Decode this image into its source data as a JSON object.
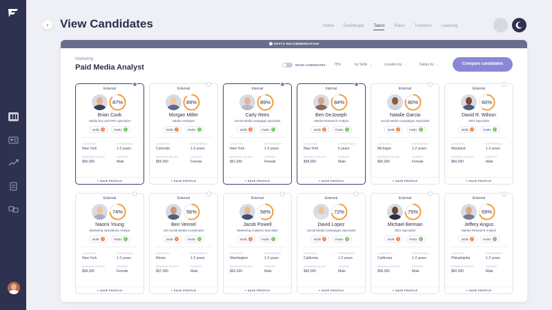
{
  "header": {
    "title": "View Candidates",
    "nav": [
      "Home",
      "Dashboard",
      "Talent",
      "Roles",
      "Transfers",
      "Learning"
    ],
    "active_nav": "Talent"
  },
  "banner": {
    "label": "SOFI'S RECOMMENDATION"
  },
  "job": {
    "category": "Marketing",
    "title": "Paid Media Analyst"
  },
  "controls": {
    "mask_label": "MASK CANDIDATES",
    "match_filter": "75%",
    "skills_filter": "by Skills",
    "location_filter": "Location by",
    "salary_filter": "Salary by",
    "compare_button": "Compare candidates"
  },
  "field_labels": {
    "location": "LOCATION",
    "experience": "EXPERIENCE",
    "salary": "MINIMUM SALARY",
    "gender": "GENDER",
    "save": "+ SAVE PROFILE",
    "skills": "Skills",
    "paths": "Paths"
  },
  "colors": {
    "accent": "#8b87d6",
    "ring": "#f39a3c",
    "rail": "#2e3150"
  },
  "candidates": [
    {
      "type": "External",
      "name": "Brian Cook",
      "role": "Media buy and PPC specialist",
      "match": 87,
      "skills": 4,
      "paths": 2,
      "location": "New York",
      "experience": "1-2 years",
      "salary": "$65,000",
      "gender": "Male",
      "selected": true
    },
    {
      "type": "External",
      "name": "Morgan Miller",
      "role": "Media Assistant",
      "match": 89,
      "skills": 4,
      "paths": 1,
      "location": "Colorado",
      "experience": "1-2 years",
      "salary": "$55,000",
      "gender": "Female",
      "selected": false
    },
    {
      "type": "Internal",
      "name": "Carly Rees",
      "role": "Social Media campaign specialist",
      "match": 89,
      "skills": 4,
      "paths": 2,
      "location": "New York",
      "experience": "1-2 years",
      "salary": "$61,000",
      "gender": "Female",
      "selected": true
    },
    {
      "type": "Internal",
      "name": "Ben DeJoseph",
      "role": "Market Research Analyst",
      "match": 84,
      "skills": 5,
      "paths": 2,
      "location": "New York",
      "experience": "5 years",
      "salary": "$58,000",
      "gender": "Male",
      "selected": true
    },
    {
      "type": "External",
      "name": "Natalie Garcia",
      "role": "Social Media Campaigns Specialist",
      "match": 80,
      "skills": 4,
      "paths": 2,
      "location": "Michigan",
      "experience": "1-2 years",
      "salary": "$60,000",
      "gender": "Female",
      "selected": false
    },
    {
      "type": "External",
      "name": "David R. Wilson",
      "role": "SEO Specialist",
      "match": 60,
      "skills": 4,
      "paths": 2,
      "location": "Maryland",
      "experience": "1-2 years",
      "salary": "$60,000",
      "gender": "Male",
      "selected": false
    },
    {
      "type": "External",
      "name": "Naomi Young",
      "role": "Marketing Operations Analyst",
      "match": 74,
      "skills": 4,
      "paths": 1,
      "location": "New York",
      "experience": "1-2 years",
      "salary": "$58,000",
      "gender": "Female",
      "selected": false
    },
    {
      "type": "External",
      "name": "Ben Vennel",
      "role": "Job Social Media Coordinator",
      "match": 56,
      "skills": 4,
      "paths": 2,
      "location": "Illinois",
      "experience": "1-2 years",
      "salary": "$57,000",
      "gender": "Male",
      "selected": false
    },
    {
      "type": "External",
      "name": "Jacob Powell",
      "role": "Marketing Analytics Specialist",
      "match": 58,
      "skills": 4,
      "paths": 2,
      "location": "Washington",
      "experience": "1-2 years",
      "salary": "$62,000",
      "gender": "Male",
      "selected": false
    },
    {
      "type": "External",
      "name": "David Lopez",
      "role": "Social Media Campaigns Specialist",
      "match": 72,
      "skills": 4,
      "paths": 2,
      "location": "California",
      "experience": "1-2 years",
      "salary": "$60,000",
      "gender": "Male",
      "selected": false
    },
    {
      "type": "External",
      "name": "Michael Berman",
      "role": "SEO Specialist",
      "match": 75,
      "skills": 4,
      "paths": 2,
      "location": "California",
      "experience": "1-2 years",
      "salary": "$56,000",
      "gender": "Male",
      "selected": false
    },
    {
      "type": "External",
      "name": "Jeffery Angus",
      "role": "Market Research Analyst",
      "match": 69,
      "skills": 4,
      "paths": 2,
      "location": "Philadelphia",
      "experience": "1-2 years",
      "salary": "$60,000",
      "gender": "Male",
      "selected": false
    }
  ]
}
